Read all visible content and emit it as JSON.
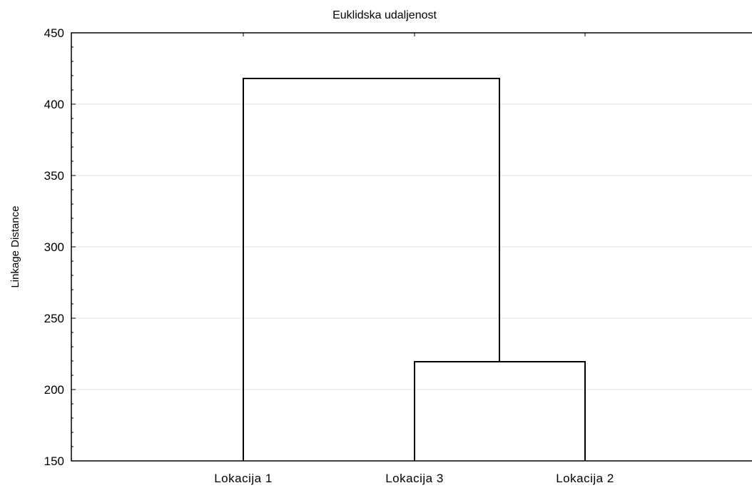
{
  "chart_data": {
    "type": "dendrogram",
    "title": "Euklidska udaljenost",
    "ylabel": "Linkage Distance",
    "xlabel": "",
    "ylim": [
      150,
      450
    ],
    "yticks": [
      150,
      200,
      250,
      300,
      350,
      400,
      450
    ],
    "grid": true,
    "leaves": [
      "Lokacija 1",
      "Lokacija 3",
      "Lokacija 2"
    ],
    "merges": [
      {
        "left": "Lokacija 3",
        "right": "Lokacija 2",
        "distance": 219.5
      },
      {
        "left": "Lokacija 1",
        "right": "Lokacija 3 + Lokacija 2",
        "distance": 418
      }
    ]
  }
}
